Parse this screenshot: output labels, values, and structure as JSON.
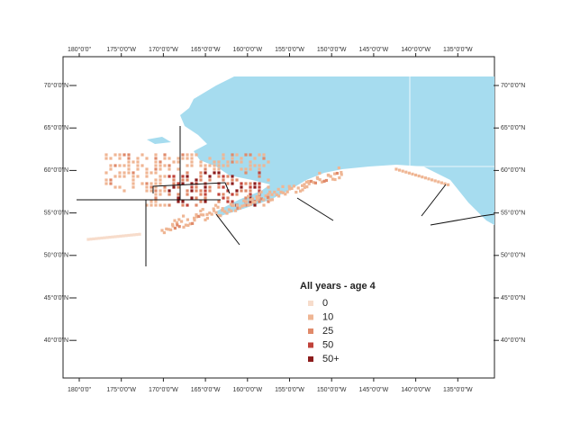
{
  "map": {
    "lon_labels": [
      "180°0'0\"",
      "175°0'0\"W",
      "170°0'0\"W",
      "165°0'0\"W",
      "160°0'0\"W",
      "155°0'0\"W",
      "150°0'0\"W",
      "145°0'0\"W",
      "140°0'0\"W",
      "135°0'0\"W"
    ],
    "lat_labels": [
      "70°0'0\"N",
      "65°0'0\"N",
      "60°0'0\"N",
      "55°0'0\"N",
      "50°0'0\"N",
      "45°0'0\"N",
      "40°0'0\"N"
    ],
    "legend": {
      "title": "All years - age 4",
      "items": [
        {
          "label": "0",
          "color": "#f7dccb"
        },
        {
          "label": "10",
          "color": "#efb694"
        },
        {
          "label": "25",
          "color": "#e08a6a"
        },
        {
          "label": "50",
          "color": "#c0423a"
        },
        {
          "label": "50+",
          "color": "#8c1c1c"
        }
      ]
    }
  }
}
